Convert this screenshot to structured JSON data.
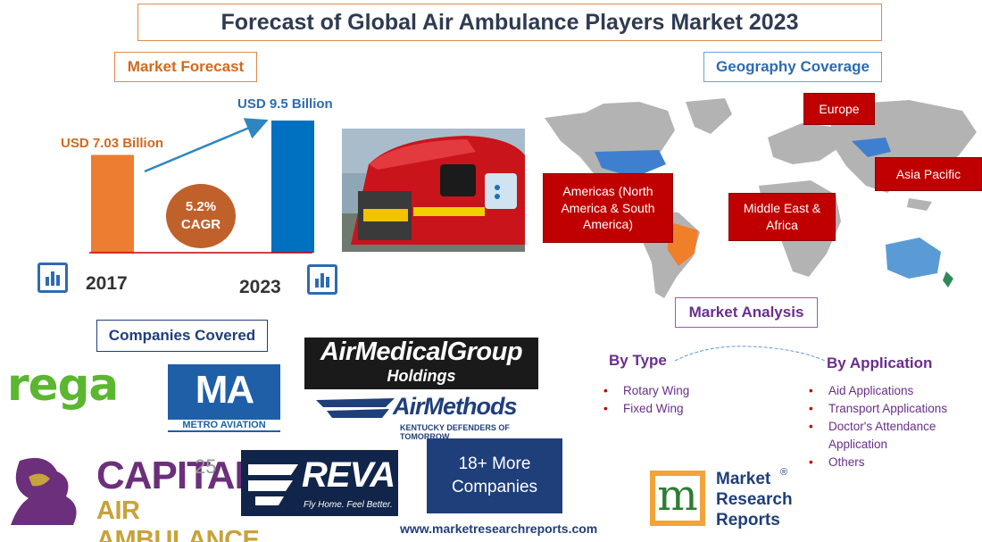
{
  "title": "Forecast of Global Air Ambulance Players Market 2023",
  "market_forecast": {
    "label": "Market Forecast",
    "value_2017": "USD 7.03 Billion",
    "value_2023": "USD 9.5 Billion",
    "year_2017": "2017",
    "year_2023": "2023",
    "cagr_value": "5.2%",
    "cagr_label": "CAGR"
  },
  "chart_data": {
    "type": "bar",
    "categories": [
      "2017",
      "2023"
    ],
    "values": [
      7.03,
      9.5
    ],
    "title": "",
    "xlabel": "",
    "ylabel": "",
    "colors": [
      "#ed7d31",
      "#0070c0"
    ]
  },
  "geography": {
    "label": "Geography Coverage",
    "regions": {
      "europe": "Europe",
      "americas": "Americas (North America & South America)",
      "mea": "Middle East & Africa",
      "apac": "Asia Pacific"
    }
  },
  "market_analysis": {
    "label": "Market Analysis",
    "by_type": {
      "heading": "By Type",
      "items": [
        "Rotary Wing",
        "Fixed Wing"
      ]
    },
    "by_application": {
      "heading": "By Application",
      "items": [
        "Aid Applications",
        "Transport Applications",
        "Doctor's Attendance Application",
        "Others"
      ]
    }
  },
  "companies": {
    "label": "Companies Covered",
    "logos": {
      "rega": "rega",
      "metro_ma": "MA",
      "metro_sub": "METRO AVIATION",
      "amg_line1": "AirMedicalGroup",
      "amg_line2": "Holdings",
      "airmethods_line1": "AirMethods",
      "airmethods_line2": "KENTUCKY DEFENDERS OF TOMORROW",
      "capital_line1": "CAPITAL",
      "capital_years": "25",
      "capital_line2": "AIR AMBULANCE",
      "reva_line1": "REVA",
      "reva_line2": "Fly Home. Feel Better."
    },
    "more_line1": "18+ More",
    "more_line2": "Companies"
  },
  "publisher": {
    "line1": "Market",
    "line2": "Research",
    "line3": "Reports",
    "reg": "®",
    "letter": "m"
  },
  "website": "www.marketresearchreports.com"
}
